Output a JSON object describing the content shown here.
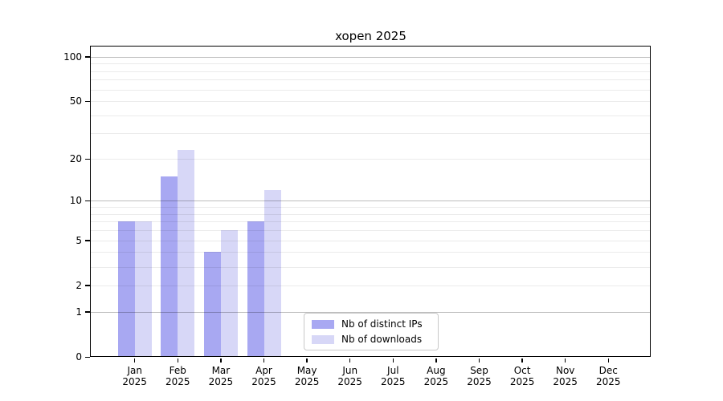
{
  "title": "xopen 2025",
  "chart_data": {
    "type": "bar",
    "title": "xopen 2025",
    "categories": [
      "Jan",
      "Feb",
      "Mar",
      "Apr",
      "May",
      "Jun",
      "Jul",
      "Aug",
      "Sep",
      "Oct",
      "Nov",
      "Dec"
    ],
    "year": "2025",
    "series": [
      {
        "name": "Nb of distinct IPs",
        "color": "#a8a8f2",
        "values": [
          7,
          15,
          4,
          7,
          0,
          0,
          0,
          0,
          0,
          0,
          0,
          0
        ]
      },
      {
        "name": "Nb of downloads",
        "color": "#d7d7f7",
        "values": [
          7,
          23,
          6,
          12,
          0,
          0,
          0,
          0,
          0,
          0,
          0,
          0
        ]
      }
    ],
    "y_scale": "log10(1+v)",
    "y_max": 117,
    "y_ticks": [
      0,
      1,
      2,
      5,
      10,
      20,
      50,
      100
    ],
    "major_gridlines": [
      1,
      10,
      100
    ],
    "minor_gridlines": [
      2,
      3,
      4,
      5,
      6,
      7,
      8,
      9,
      20,
      30,
      40,
      50,
      60,
      70,
      80,
      90
    ],
    "grid": "on",
    "legend_position": "lower center",
    "xlabel": "",
    "ylabel": ""
  }
}
